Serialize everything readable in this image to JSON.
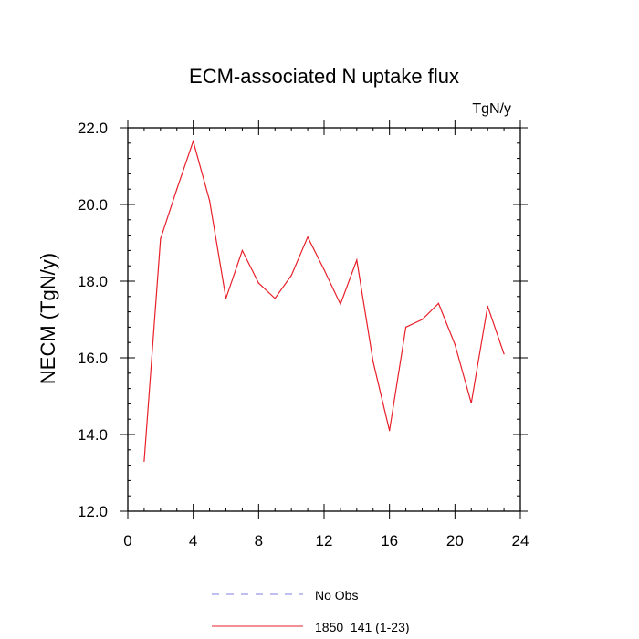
{
  "chart_data": {
    "type": "line",
    "title": "ECM-associated N uptake flux",
    "units_label": "TgN/y",
    "xlabel": "",
    "ylabel": "NECM  (TgN/y)",
    "xlim": [
      0,
      24
    ],
    "ylim": [
      12,
      22
    ],
    "x_ticks": [
      0,
      4,
      8,
      12,
      16,
      20,
      24
    ],
    "x_tick_labels": [
      "0",
      "4",
      "8",
      "12",
      "16",
      "20",
      "24"
    ],
    "y_ticks": [
      12,
      14,
      16,
      18,
      20,
      22
    ],
    "y_tick_labels": [
      "12.0",
      "14.0",
      "16.0",
      "18.0",
      "20.0",
      "22.0"
    ],
    "grid": false,
    "series": [
      {
        "name": "1850_141 (1-23)",
        "color": "#e8202a",
        "x": [
          1,
          2,
          3,
          4,
          5,
          6,
          7,
          8,
          9,
          10,
          11,
          12,
          13,
          14,
          15,
          16,
          17,
          18,
          19,
          20,
          21,
          22,
          23
        ],
        "values": [
          13.3,
          19.1,
          20.4,
          21.65,
          20.1,
          17.55,
          18.8,
          17.95,
          17.55,
          18.15,
          19.15,
          18.3,
          17.4,
          18.55,
          15.9,
          14.1,
          16.8,
          17.0,
          17.42,
          16.35,
          14.82,
          17.35,
          16.1
        ]
      }
    ],
    "legend": {
      "placement": "bottom",
      "entries": [
        {
          "label": "No Obs",
          "color": "#8080e0",
          "style": "dashed"
        },
        {
          "label": "1850_141 (1-23)",
          "color": "#e8202a",
          "style": "solid"
        }
      ]
    }
  }
}
